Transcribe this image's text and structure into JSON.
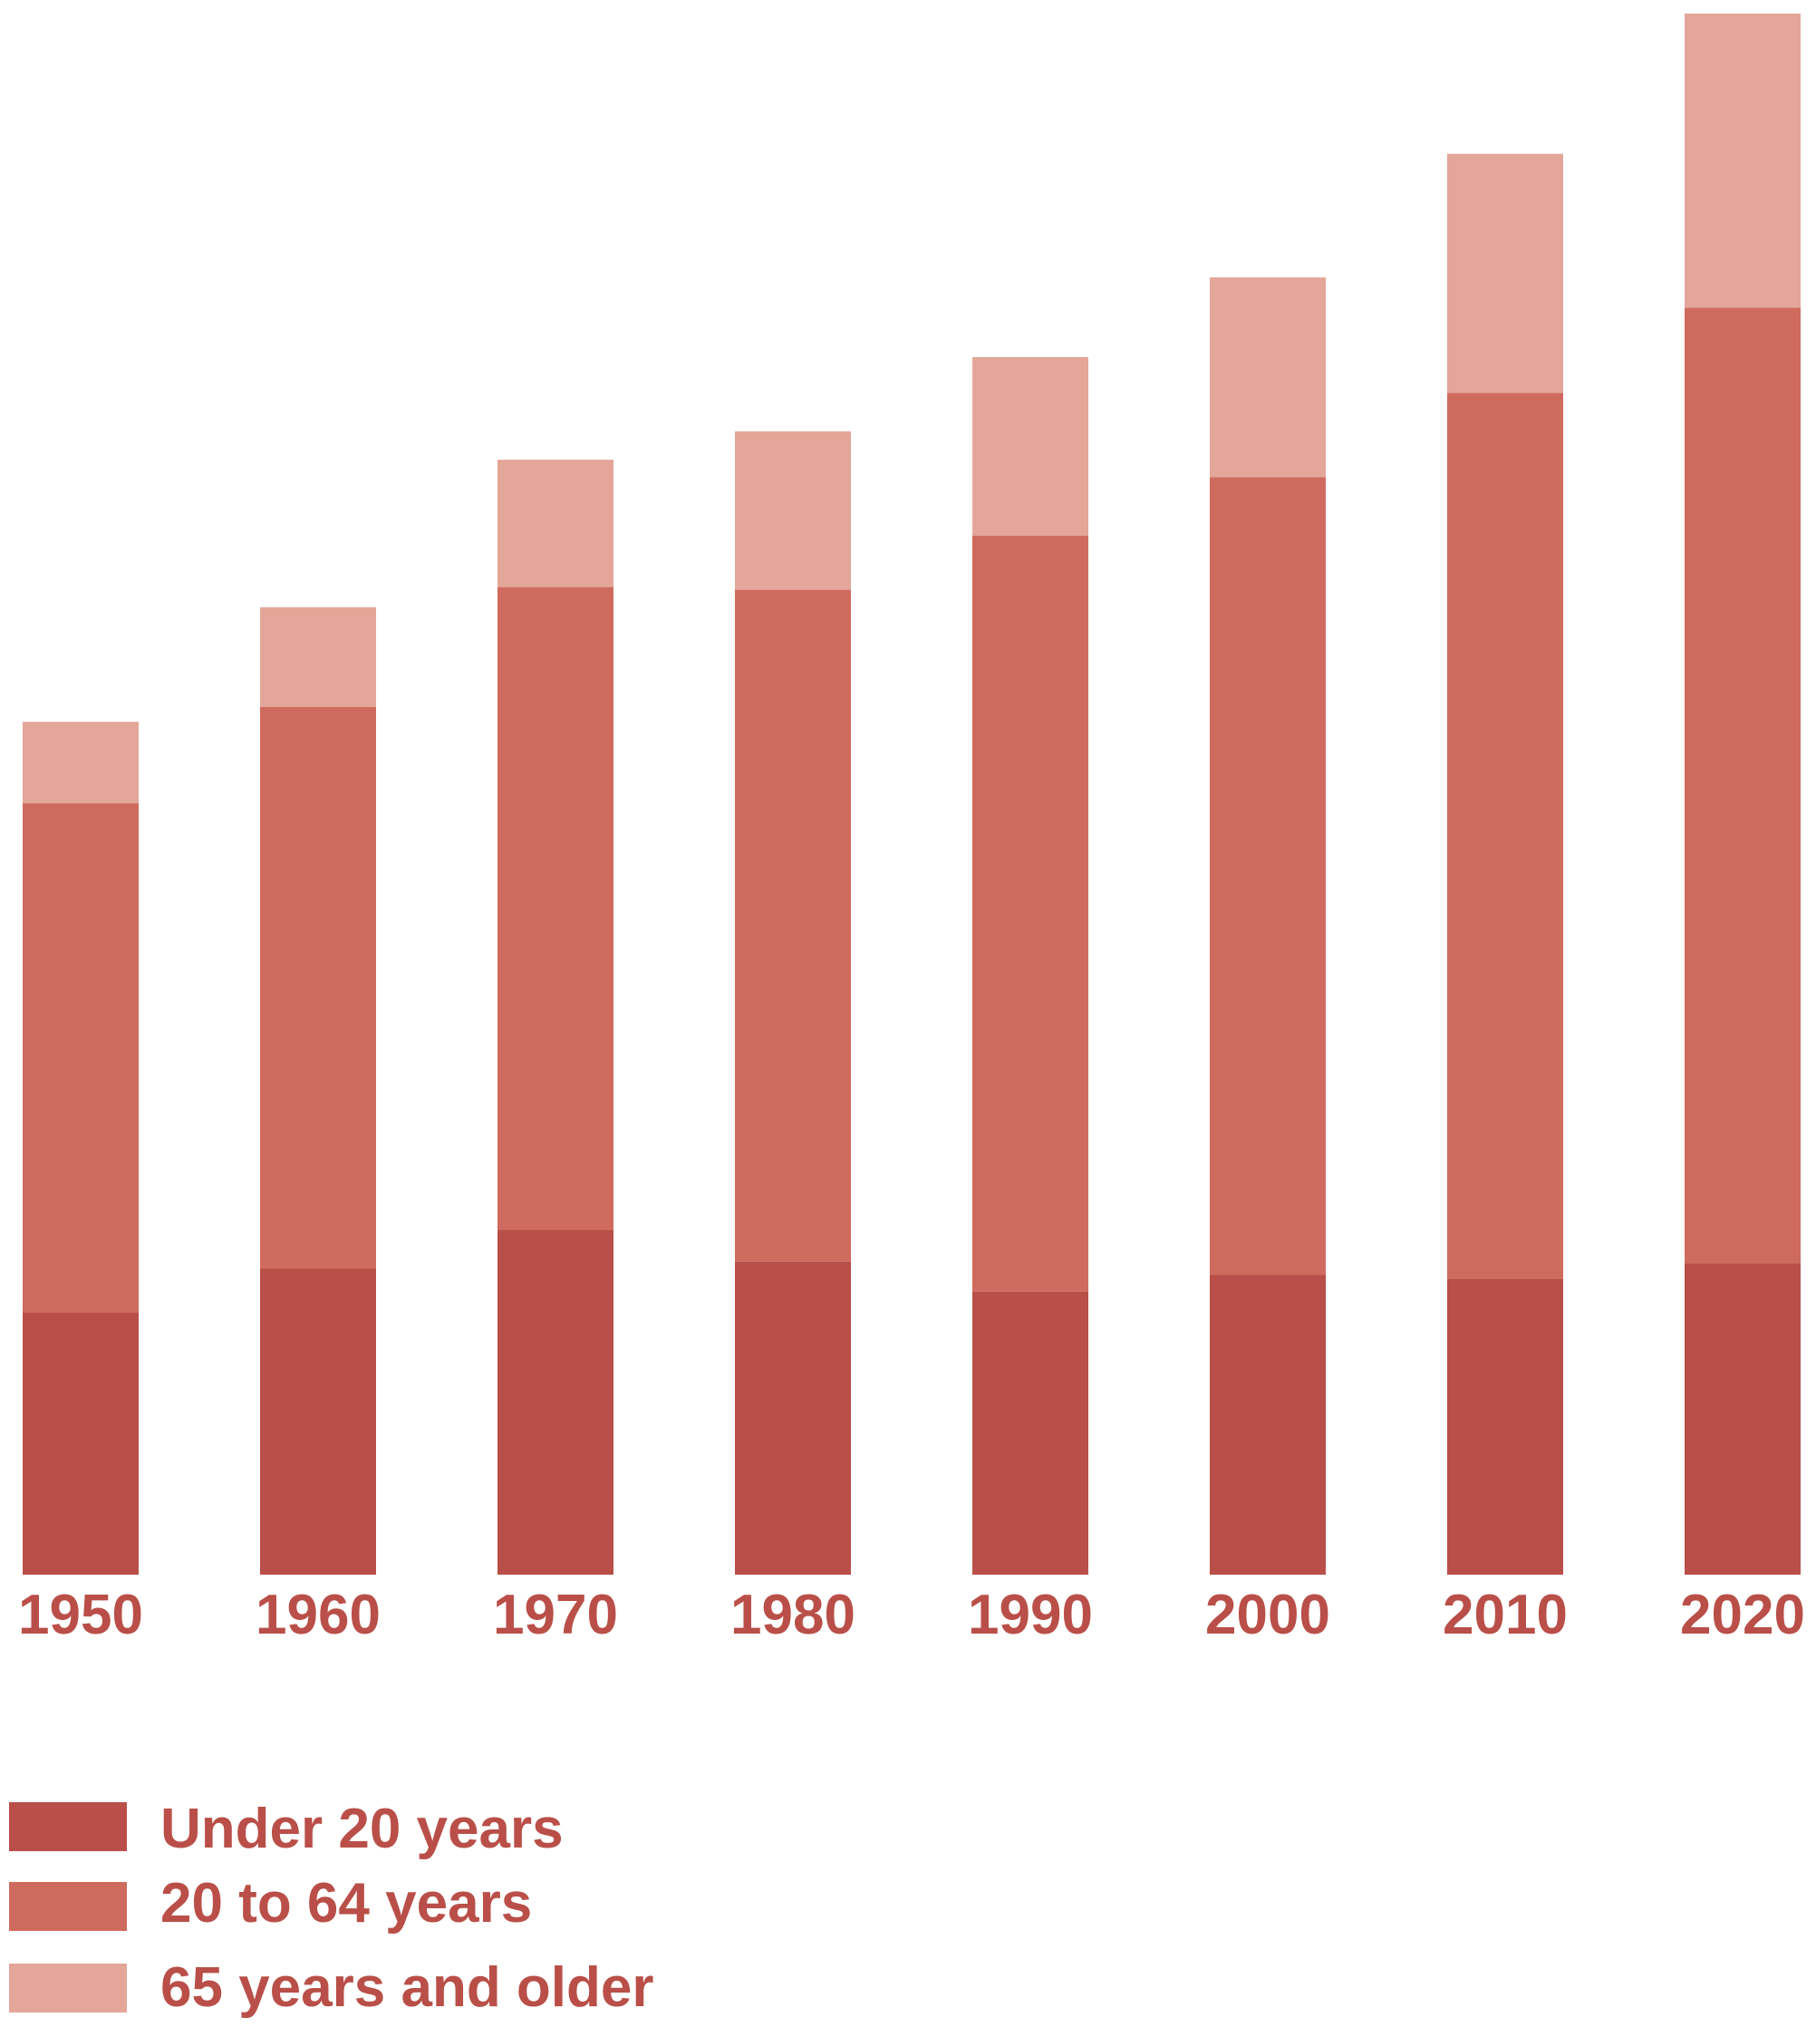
{
  "chart_data": {
    "type": "bar",
    "stacked": true,
    "categories": [
      "1950",
      "1960",
      "1970",
      "1980",
      "1990",
      "2000",
      "2010",
      "2020"
    ],
    "series": [
      {
        "name": "Under 20 years",
        "color": "#b94f48",
        "values": [
          28.6,
          33.4,
          37.6,
          34.2,
          30.9,
          32.7,
          32.3,
          34.0
        ]
      },
      {
        "name": "20 to 64 years",
        "color": "#cf6b5e",
        "values": [
          55.6,
          61.3,
          70.2,
          73.3,
          82.5,
          87.1,
          96.7,
          104.3
        ]
      },
      {
        "name": "65 years and older",
        "color": "#e3a699",
        "values": [
          8.9,
          10.9,
          13.9,
          17.3,
          19.5,
          21.8,
          26.1,
          32.1
        ]
      }
    ],
    "ylim": [
      0,
      170.4
    ],
    "axes_visible": false,
    "grid": false,
    "legend_position": "bottom-left",
    "tick_color": "#b94f48"
  }
}
